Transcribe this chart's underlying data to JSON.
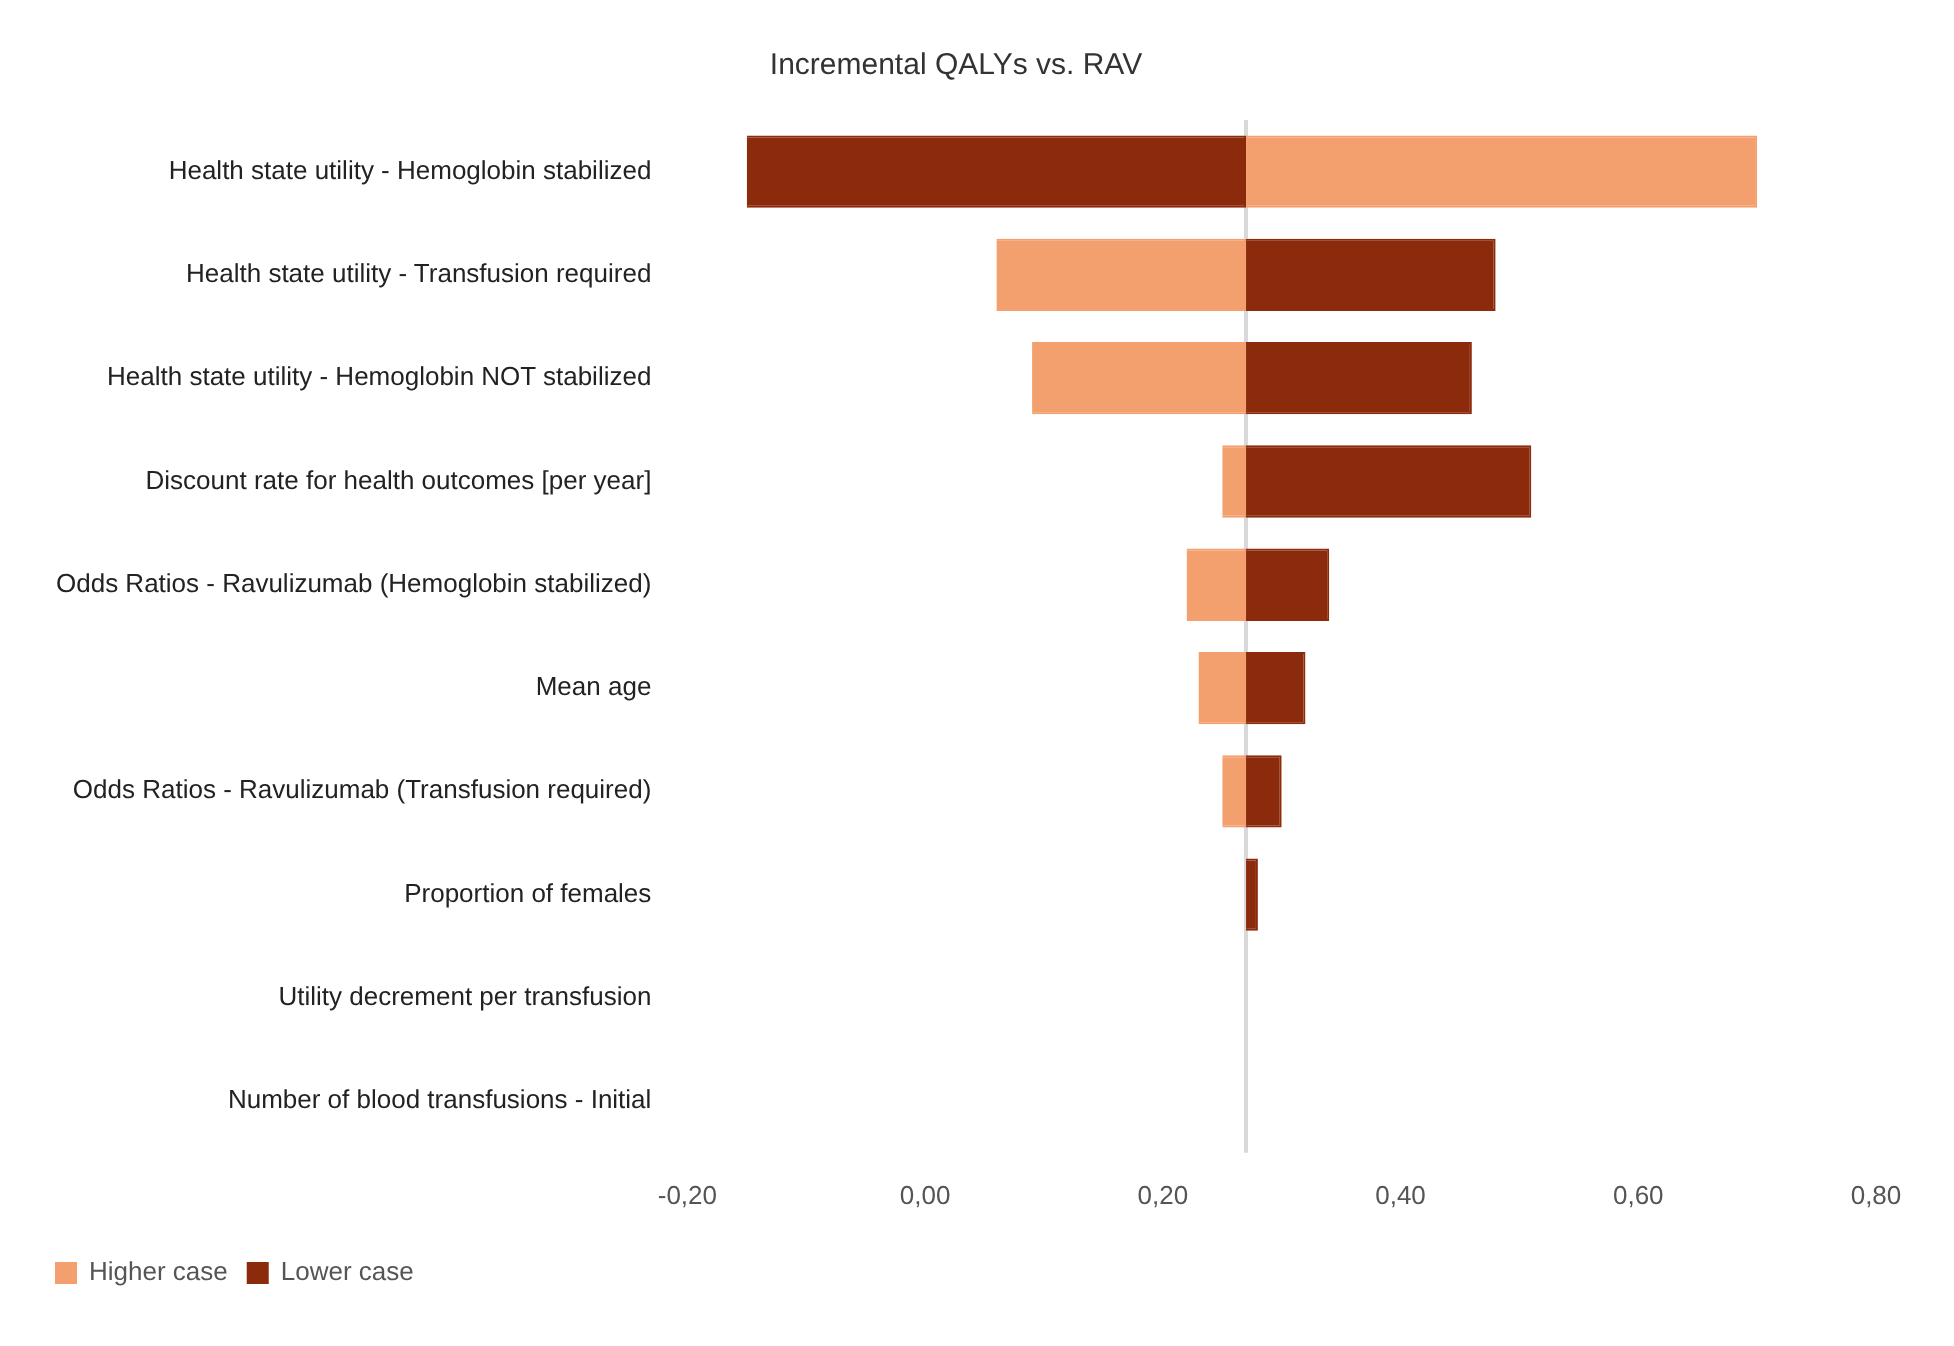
{
  "chart_data": {
    "type": "bar",
    "orientation": "horizontal",
    "title": "Incremental QALYs vs. RAV",
    "categories": [
      "Health state utility - Hemoglobin stabilized",
      "Health state utility - Transfusion required",
      "Health state utility - Hemoglobin NOT stabilized",
      "Discount rate for health outcomes [per year]",
      "Odds Ratios - Ravulizumab (Hemoglobin stabilized)",
      "Mean age",
      "Odds Ratios - Ravulizumab (Transfusion required)",
      "Proportion of females",
      "Utility decrement per transfusion",
      "Number of blood transfusions - Initial"
    ],
    "series": [
      {
        "name": "Higher case",
        "color": "#f4a06e",
        "base": [
          0.27,
          0.27,
          0.27,
          0.27,
          0.27,
          0.27,
          0.27,
          null,
          null,
          null
        ],
        "values": [
          0.43,
          -0.21,
          -0.18,
          -0.02,
          -0.05,
          -0.04,
          -0.02,
          null,
          null,
          null
        ]
      },
      {
        "name": "Lower case",
        "color": "#8c2a0c",
        "base": [
          0.27,
          0.27,
          0.27,
          0.27,
          0.27,
          0.27,
          0.27,
          0.27,
          null,
          null
        ],
        "values": [
          -0.42,
          0.21,
          0.19,
          0.24,
          0.07,
          0.05,
          0.03,
          0.01,
          null,
          null
        ]
      }
    ],
    "xlim": [
      -0.2,
      0.8
    ],
    "xticks": [
      {
        "value": -0.2,
        "label": "-0,20"
      },
      {
        "value": 0,
        "label": "0,00"
      },
      {
        "value": 0.2,
        "label": "0,20"
      },
      {
        "value": 0.4,
        "label": "0,40"
      },
      {
        "value": 0.6,
        "label": "0,60"
      },
      {
        "value": 0.8,
        "label": "0,80"
      }
    ],
    "ref_lines": [
      {
        "axis": "x",
        "value": 0.27,
        "color": "#d9d9d9"
      }
    ],
    "grid": false,
    "legend": "bottom left"
  }
}
